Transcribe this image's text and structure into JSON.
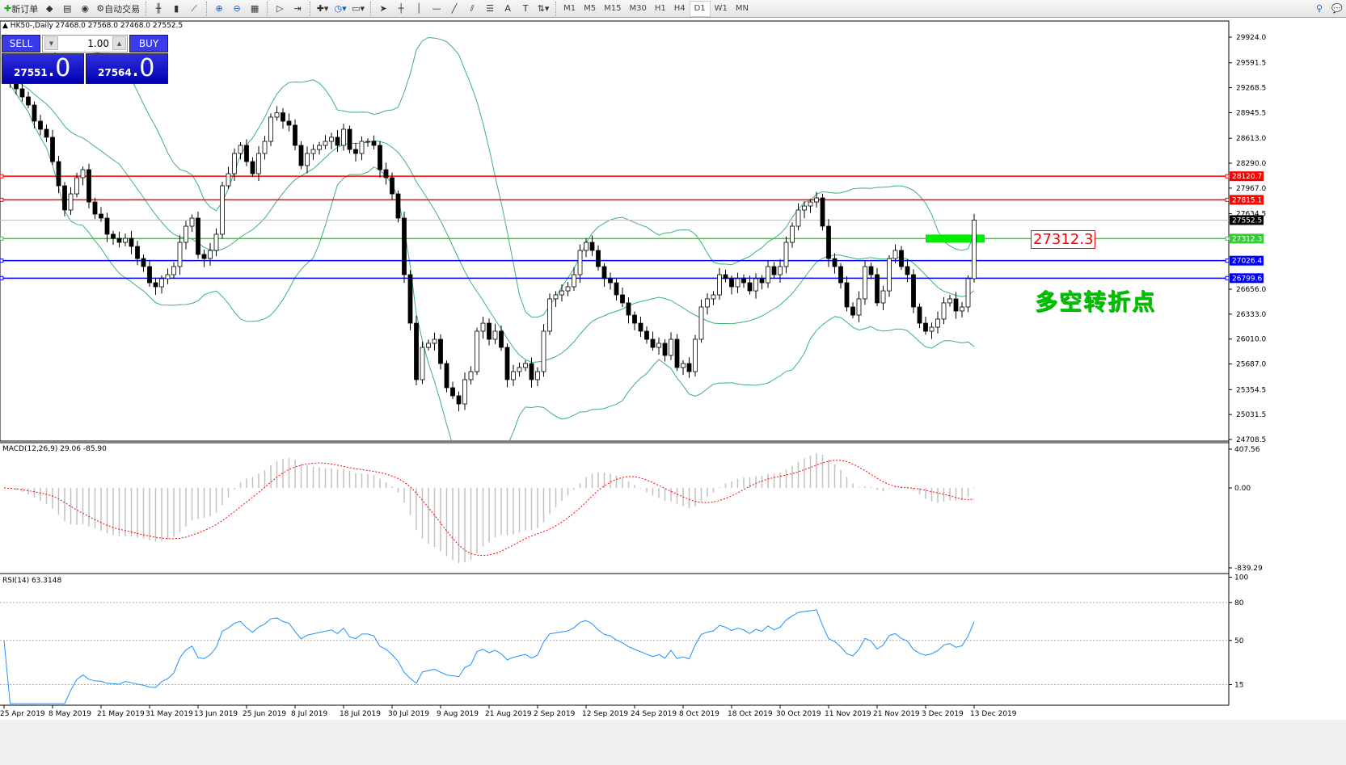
{
  "toolbar": {
    "items": [
      {
        "icon": "new-order-icon",
        "label": "新订单"
      },
      {
        "icon": "market-watch-icon",
        "label": ""
      },
      {
        "icon": "navigator-icon",
        "label": ""
      },
      {
        "icon": "signal-icon",
        "label": ""
      },
      {
        "icon": "autotrading-icon",
        "label": "自动交易"
      },
      {
        "icon": "bar-chart-icon",
        "label": ""
      },
      {
        "icon": "candlestick-icon",
        "label": ""
      },
      {
        "icon": "line-chart-icon",
        "label": ""
      },
      {
        "icon": "zoom-in-icon",
        "label": ""
      },
      {
        "icon": "zoom-out-icon",
        "label": ""
      },
      {
        "icon": "tile-windows-icon",
        "label": ""
      },
      {
        "icon": "auto-scroll-icon",
        "label": ""
      },
      {
        "icon": "chart-shift-icon",
        "label": ""
      },
      {
        "icon": "indicators-icon",
        "label": ""
      },
      {
        "icon": "periods-icon",
        "label": ""
      },
      {
        "icon": "templates-icon",
        "label": ""
      },
      {
        "icon": "cursor-icon",
        "label": ""
      },
      {
        "icon": "crosshair-icon",
        "label": ""
      },
      {
        "icon": "vertical-line-icon",
        "label": ""
      },
      {
        "icon": "horizontal-line-icon",
        "label": ""
      },
      {
        "icon": "trendline-icon",
        "label": ""
      },
      {
        "icon": "equidistant-channel-icon",
        "label": ""
      },
      {
        "icon": "fibonacci-icon",
        "label": ""
      },
      {
        "icon": "text-icon",
        "label": "A"
      },
      {
        "icon": "text-label-icon",
        "label": "T"
      },
      {
        "icon": "arrows-icon",
        "label": ""
      }
    ],
    "timeframes": [
      "M1",
      "M5",
      "M15",
      "M30",
      "H1",
      "H4",
      "D1",
      "W1",
      "MN"
    ],
    "active_timeframe": "D1"
  },
  "chart": {
    "symbol_info": "HK50-,Daily  27468.0 27568.0 27468.0 27552.5",
    "trade_panel": {
      "sell_label": "SELL",
      "buy_label": "BUY",
      "lot": "1.00",
      "sell_int": "27551",
      "sell_frac": ".0",
      "buy_int": "27564",
      "buy_frac": ".0"
    },
    "annotation_price": "27312.3",
    "annotation_text": "多空转折点",
    "macd_label": "MACD(12,26,9) 29.06 -85.90",
    "rsi_label": "RSI(14) 63.3148"
  },
  "chart_data": {
    "type": "candlestick",
    "price_ticks": [
      "29924.0",
      "29591.5",
      "29268.5",
      "28945.5",
      "28613.0",
      "28290.0",
      "27967.0",
      "27634.5",
      "26656.0",
      "26333.0",
      "26010.0",
      "25687.0",
      "25354.5",
      "25031.5",
      "24708.5"
    ],
    "ylim": [
      24708.5,
      29924.0
    ],
    "date_ticks": [
      "25 Apr 2019",
      "8 May 2019",
      "21 May 2019",
      "31 May 2019",
      "13 Jun 2019",
      "25 Jun 2019",
      "8 Jul 2019",
      "18 Jul 2019",
      "30 Jul 2019",
      "9 Aug 2019",
      "21 Aug 2019",
      "2 Sep 2019",
      "12 Sep 2019",
      "24 Sep 2019",
      "8 Oct 2019",
      "18 Oct 2019",
      "30 Oct 2019",
      "11 Nov 2019",
      "21 Nov 2019",
      "3 Dec 2019",
      "13 Dec 2019"
    ],
    "closes": [
      29463,
      29358,
      29254,
      29149,
      29044,
      28835,
      28730,
      28626,
      28311,
      27997,
      27683,
      27892,
      28102,
      28206,
      27787,
      27630,
      27578,
      27369,
      27316,
      27264,
      27316,
      27211,
      27054,
      26950,
      26740,
      26688,
      26793,
      26845,
      26950,
      27264,
      27473,
      27578,
      27107,
      27054,
      27159,
      27369,
      27997,
      28154,
      28416,
      28521,
      28311,
      28154,
      28416,
      28573,
      28887,
      28943,
      28835,
      28783,
      28521,
      28259,
      28416,
      28468,
      28521,
      28573,
      28626,
      28521,
      28730,
      28468,
      28416,
      28573,
      28573,
      28521,
      28206,
      28102,
      27892,
      27578,
      26845,
      26216,
      25484,
      25902,
      25955,
      26007,
      25693,
      25379,
      25274,
      25169,
      25484,
      25588,
      26112,
      26216,
      26007,
      26112,
      25902,
      25484,
      25588,
      25641,
      25693,
      25484,
      25588,
      26112,
      26531,
      26583,
      26635,
      26688,
      26845,
      27159,
      27264,
      27159,
      26950,
      26793,
      26740,
      26583,
      26479,
      26321,
      26216,
      26112,
      26007,
      25902,
      25955,
      25798,
      26007,
      25641,
      25693,
      25588,
      26007,
      26426,
      26531,
      26583,
      26845,
      26793,
      26688,
      26793,
      26740,
      26635,
      26793,
      26740,
      26950,
      26845,
      26950,
      27264,
      27473,
      27683,
      27735,
      27787,
      27840,
      27473,
      27054,
      26950,
      26740,
      26426,
      26321,
      26531,
      26950,
      26845,
      26479,
      26635,
      27054,
      27159,
      26950,
      26845,
      26426,
      26216,
      26112,
      26164,
      26269,
      26479,
      26531,
      26374,
      26426,
      26793,
      27552.5
    ],
    "horizontal_lines": [
      {
        "price": "28120.7",
        "color": "#ff0000"
      },
      {
        "price": "27815.1",
        "color": "#ff0000"
      },
      {
        "price": "27552.5",
        "color": "#c0c0c0",
        "bid": true
      },
      {
        "price": "27312.3",
        "color": "#32cd32"
      },
      {
        "price": "27026.4",
        "color": "#0000ff"
      },
      {
        "price": "26799.6",
        "color": "#0000ff"
      }
    ],
    "indicators": {
      "bollinger": {
        "period": 20,
        "deviation": 2,
        "color": "#3cb371"
      },
      "macd": {
        "fast": 12,
        "slow": 26,
        "signal": 9,
        "ticks": [
          "407.56",
          "0.00",
          "-839.29"
        ],
        "range": [
          -839.29,
          407.56
        ],
        "hist_color": "#c0c0c0",
        "signal_color": "#ff0000"
      },
      "rsi": {
        "period": 14,
        "ticks": [
          "100",
          "80",
          "50",
          "15"
        ],
        "levels": [
          80,
          50,
          15
        ],
        "color": "#1e90ff"
      }
    },
    "bull_color": "#ffffff",
    "bear_color": "#000000",
    "grid": false
  }
}
